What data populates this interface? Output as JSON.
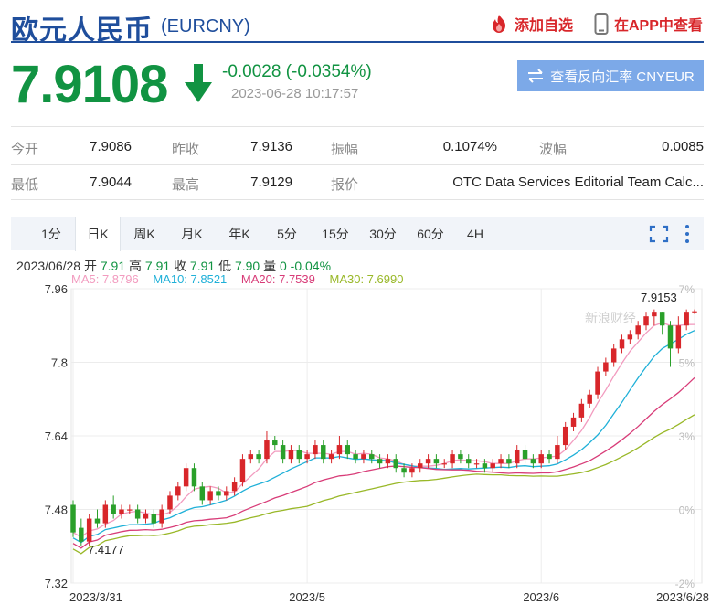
{
  "header": {
    "title": "欧元人民币",
    "code": "(EURCNY)",
    "add_watchlist": "添加自选",
    "view_in_app": "在APP中查看"
  },
  "quote": {
    "price": "7.9108",
    "change": "-0.0028 (-0.0354%)",
    "time": "2023-06-28 10:17:57",
    "reverse_button": "查看反向汇率 CNYEUR",
    "direction_color": "#119342"
  },
  "stats": [
    {
      "label": "今开",
      "value": "7.9086"
    },
    {
      "label": "昨收",
      "value": "7.9136"
    },
    {
      "label": "振幅",
      "value": "0.1074%"
    },
    {
      "label": "波幅",
      "value": "0.0085"
    },
    {
      "label": "最低",
      "value": "7.9044"
    },
    {
      "label": "最高",
      "value": "7.9129"
    },
    {
      "label": "报价",
      "value": "OTC Data Services Editorial Team Calc..."
    }
  ],
  "tabs": [
    "1分",
    "日K",
    "周K",
    "月K",
    "年K",
    "5分",
    "15分",
    "30分",
    "60分",
    "4H"
  ],
  "active_tab": "日K",
  "ohlc": {
    "date": "2023/06/28",
    "open_label": "开",
    "open": "7.91",
    "high_label": "高",
    "high": "7.91",
    "close_label": "收",
    "close": "7.91",
    "low_label": "低",
    "low": "7.90",
    "vol_label": "量",
    "vol": "0",
    "pct": "-0.04%"
  },
  "ma_legend": [
    {
      "text": "MA5: 7.8796",
      "color": "#f29bbf"
    },
    {
      "text": "MA10: 7.8521",
      "color": "#1fb0d8"
    },
    {
      "text": "MA20: 7.7539",
      "color": "#d83c78"
    },
    {
      "text": "MA30: 7.6990",
      "color": "#99b828"
    }
  ],
  "watermark": "新浪财经",
  "chart_data": {
    "type": "candlestick",
    "y_ticks": [
      "7.96",
      "7.8",
      "7.64",
      "7.48",
      "7.32"
    ],
    "y_tick_values": [
      7.96,
      7.8,
      7.64,
      7.48,
      7.32
    ],
    "pct_ticks": [
      "7%",
      "5%",
      "3%",
      "0%",
      "-2%"
    ],
    "x_ticks": [
      "2023/3/31",
      "2023/5",
      "2023/6",
      "2023/6/28"
    ],
    "ylim": [
      7.32,
      7.96
    ],
    "grid": true,
    "annotations": {
      "max": "7.9153",
      "min": "7.4177"
    },
    "up_color": "#d8262a",
    "down_color": "#2aa02a",
    "candles": [
      [
        7.49,
        7.43,
        7.5,
        7.42
      ],
      [
        7.44,
        7.41,
        7.46,
        7.4
      ],
      [
        7.41,
        7.46,
        7.47,
        7.4
      ],
      [
        7.46,
        7.45,
        7.48,
        7.44
      ],
      [
        7.45,
        7.49,
        7.5,
        7.44
      ],
      [
        7.49,
        7.47,
        7.51,
        7.46
      ],
      [
        7.47,
        7.48,
        7.49,
        7.46
      ],
      [
        7.48,
        7.48,
        7.49,
        7.47
      ],
      [
        7.48,
        7.46,
        7.49,
        7.45
      ],
      [
        7.46,
        7.47,
        7.48,
        7.45
      ],
      [
        7.47,
        7.45,
        7.48,
        7.44
      ],
      [
        7.45,
        7.48,
        7.49,
        7.44
      ],
      [
        7.48,
        7.51,
        7.52,
        7.47
      ],
      [
        7.51,
        7.53,
        7.54,
        7.5
      ],
      [
        7.53,
        7.57,
        7.58,
        7.52
      ],
      [
        7.57,
        7.53,
        7.58,
        7.52
      ],
      [
        7.53,
        7.5,
        7.54,
        7.49
      ],
      [
        7.5,
        7.52,
        7.53,
        7.49
      ],
      [
        7.52,
        7.51,
        7.53,
        7.5
      ],
      [
        7.51,
        7.52,
        7.53,
        7.5
      ],
      [
        7.52,
        7.54,
        7.55,
        7.51
      ],
      [
        7.54,
        7.59,
        7.6,
        7.53
      ],
      [
        7.59,
        7.6,
        7.61,
        7.58
      ],
      [
        7.6,
        7.59,
        7.61,
        7.58
      ],
      [
        7.59,
        7.63,
        7.65,
        7.58
      ],
      [
        7.63,
        7.62,
        7.64,
        7.61
      ],
      [
        7.62,
        7.59,
        7.63,
        7.58
      ],
      [
        7.59,
        7.61,
        7.62,
        7.58
      ],
      [
        7.61,
        7.59,
        7.62,
        7.58
      ],
      [
        7.59,
        7.6,
        7.61,
        7.58
      ],
      [
        7.6,
        7.62,
        7.63,
        7.59
      ],
      [
        7.62,
        7.59,
        7.63,
        7.58
      ],
      [
        7.59,
        7.6,
        7.61,
        7.58
      ],
      [
        7.6,
        7.62,
        7.64,
        7.59
      ],
      [
        7.62,
        7.6,
        7.63,
        7.59
      ],
      [
        7.6,
        7.59,
        7.61,
        7.58
      ],
      [
        7.59,
        7.6,
        7.61,
        7.58
      ],
      [
        7.6,
        7.59,
        7.61,
        7.58
      ],
      [
        7.59,
        7.58,
        7.6,
        7.57
      ],
      [
        7.58,
        7.59,
        7.6,
        7.57
      ],
      [
        7.59,
        7.57,
        7.6,
        7.56
      ],
      [
        7.57,
        7.56,
        7.58,
        7.55
      ],
      [
        7.56,
        7.57,
        7.58,
        7.55
      ],
      [
        7.57,
        7.58,
        7.59,
        7.56
      ],
      [
        7.58,
        7.59,
        7.6,
        7.57
      ],
      [
        7.59,
        7.58,
        7.6,
        7.57
      ],
      [
        7.58,
        7.58,
        7.59,
        7.57
      ],
      [
        7.58,
        7.6,
        7.61,
        7.57
      ],
      [
        7.6,
        7.59,
        7.61,
        7.58
      ],
      [
        7.59,
        7.58,
        7.6,
        7.57
      ],
      [
        7.58,
        7.58,
        7.59,
        7.57
      ],
      [
        7.58,
        7.57,
        7.59,
        7.56
      ],
      [
        7.57,
        7.58,
        7.59,
        7.56
      ],
      [
        7.58,
        7.59,
        7.6,
        7.57
      ],
      [
        7.59,
        7.58,
        7.6,
        7.57
      ],
      [
        7.58,
        7.61,
        7.62,
        7.57
      ],
      [
        7.61,
        7.59,
        7.62,
        7.58
      ],
      [
        7.59,
        7.58,
        7.6,
        7.57
      ],
      [
        7.58,
        7.6,
        7.61,
        7.57
      ],
      [
        7.6,
        7.59,
        7.61,
        7.58
      ],
      [
        7.59,
        7.62,
        7.64,
        7.58
      ],
      [
        7.62,
        7.66,
        7.67,
        7.61
      ],
      [
        7.66,
        7.68,
        7.69,
        7.65
      ],
      [
        7.68,
        7.71,
        7.72,
        7.67
      ],
      [
        7.71,
        7.73,
        7.74,
        7.7
      ],
      [
        7.73,
        7.78,
        7.79,
        7.72
      ],
      [
        7.78,
        7.8,
        7.81,
        7.77
      ],
      [
        7.8,
        7.83,
        7.84,
        7.79
      ],
      [
        7.83,
        7.85,
        7.86,
        7.82
      ],
      [
        7.85,
        7.86,
        7.87,
        7.84
      ],
      [
        7.86,
        7.88,
        7.89,
        7.85
      ],
      [
        7.88,
        7.9,
        7.91,
        7.87
      ],
      [
        7.9,
        7.91,
        7.915,
        7.88
      ],
      [
        7.91,
        7.88,
        7.91,
        7.86
      ],
      [
        7.88,
        7.83,
        7.89,
        7.79
      ],
      [
        7.83,
        7.88,
        7.9,
        7.82
      ],
      [
        7.88,
        7.91,
        7.915,
        7.87
      ],
      [
        7.91,
        7.911,
        7.915,
        7.905
      ]
    ]
  }
}
